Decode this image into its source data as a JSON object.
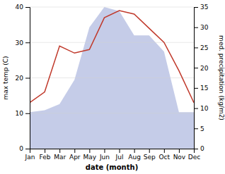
{
  "chart_data": {
    "type": "line",
    "xlabel": "date (month)",
    "ylabel": "max temp (C)",
    "y2label": "med. precipitation (kg/m2)",
    "categories": [
      "Jan",
      "Feb",
      "Mar",
      "Apr",
      "May",
      "Jun",
      "Jul",
      "Aug",
      "Sep",
      "Oct",
      "Nov",
      "Dec"
    ],
    "series": [
      {
        "type": "area",
        "axis": "y2",
        "color": "#c5cce8",
        "values": [
          9.0,
          9.5,
          11.0,
          17.0,
          30.0,
          35.0,
          34.0,
          28.0,
          28.0,
          24.0,
          9.0,
          9.0
        ]
      },
      {
        "type": "line",
        "color": "#c0392b",
        "values": [
          13.0,
          16.0,
          29.0,
          27.0,
          28.0,
          37.0,
          39.0,
          38.0,
          34.0,
          30.0,
          22.0,
          13.0
        ]
      }
    ],
    "ylim": [
      0,
      40
    ],
    "yticks": [
      0,
      10,
      20,
      30,
      40
    ],
    "y2lim": [
      0,
      35
    ],
    "y2ticks": [
      0,
      5,
      10,
      15,
      20,
      25,
      30,
      35
    ],
    "grid": true
  }
}
